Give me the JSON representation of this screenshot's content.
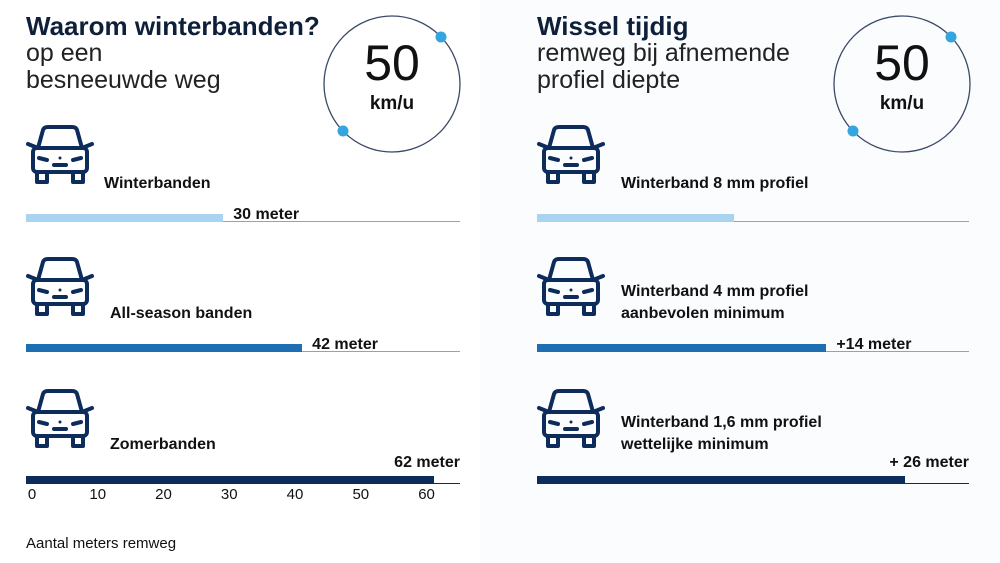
{
  "colors": {
    "light": "#a9d3ee",
    "mid": "#1e6fb2",
    "dark": "#0d2c5c",
    "accent": "#33a6e0",
    "ring": "#3a4a66"
  },
  "left": {
    "title": "Waarom winterbanden?",
    "subtitle": "op een\nbesneeuwde weg",
    "badge": {
      "value": "50",
      "unit": "km/u"
    },
    "footnote": "Aantal meters remweg",
    "rows": [
      {
        "label_lines": [
          "Winterbanden"
        ],
        "value_label": "30 meter",
        "color": "light",
        "icon": "car-front-icon"
      },
      {
        "label_lines": [
          "All-season banden"
        ],
        "value_label": "42 meter",
        "color": "mid",
        "icon": "car-front-icon"
      },
      {
        "label_lines": [
          "Zomerbanden"
        ],
        "value_label": "62 meter",
        "color": "dark",
        "icon": "car-front-icon"
      }
    ]
  },
  "right": {
    "title": "Wissel tijdig",
    "subtitle": "remweg bij afnemende\nprofiel diepte",
    "badge": {
      "value": "50",
      "unit": "km/u"
    },
    "rows": [
      {
        "label_lines": [
          "Winterband 8 mm profiel"
        ],
        "value_label": "",
        "color": "light",
        "icon": "car-front-icon"
      },
      {
        "label_lines": [
          "Winterband 4 mm profiel",
          "aanbevolen minimum"
        ],
        "value_label": "+14 meter",
        "color": "mid",
        "icon": "car-front-icon"
      },
      {
        "label_lines": [
          "Winterband 1,6 mm profiel",
          "wettelijke minimum"
        ],
        "value_label": "+ 26 meter",
        "color": "dark",
        "icon": "car-front-icon"
      }
    ]
  },
  "chart_data": [
    {
      "type": "bar",
      "orientation": "horizontal",
      "title": "Waarom winterbanden?",
      "subtitle": "op een besneeuwde weg",
      "categories": [
        "Winterbanden",
        "All-season banden",
        "Zomerbanden"
      ],
      "values": [
        30,
        42,
        62
      ],
      "data_labels": [
        "30 meter",
        "42 meter",
        "62 meter"
      ],
      "xlim": [
        0,
        66
      ],
      "xticks": [
        0,
        10,
        20,
        30,
        40,
        50,
        60
      ],
      "xlabel": "Aantal meters remweg",
      "grid": false
    },
    {
      "type": "bar",
      "orientation": "horizontal",
      "title": "Wissel tijdig",
      "subtitle": "remweg bij afnemende profiel diepte",
      "categories": [
        "Winterband 8 mm profiel",
        "Winterband 4 mm profiel aanbevolen minimum",
        "Winterband 1,6 mm profiel wettelijke minimum"
      ],
      "values": [
        30,
        44,
        56
      ],
      "data_labels": [
        "",
        "+14 meter",
        "+ 26 meter"
      ],
      "xlim": [
        0,
        66
      ],
      "grid": false
    }
  ]
}
